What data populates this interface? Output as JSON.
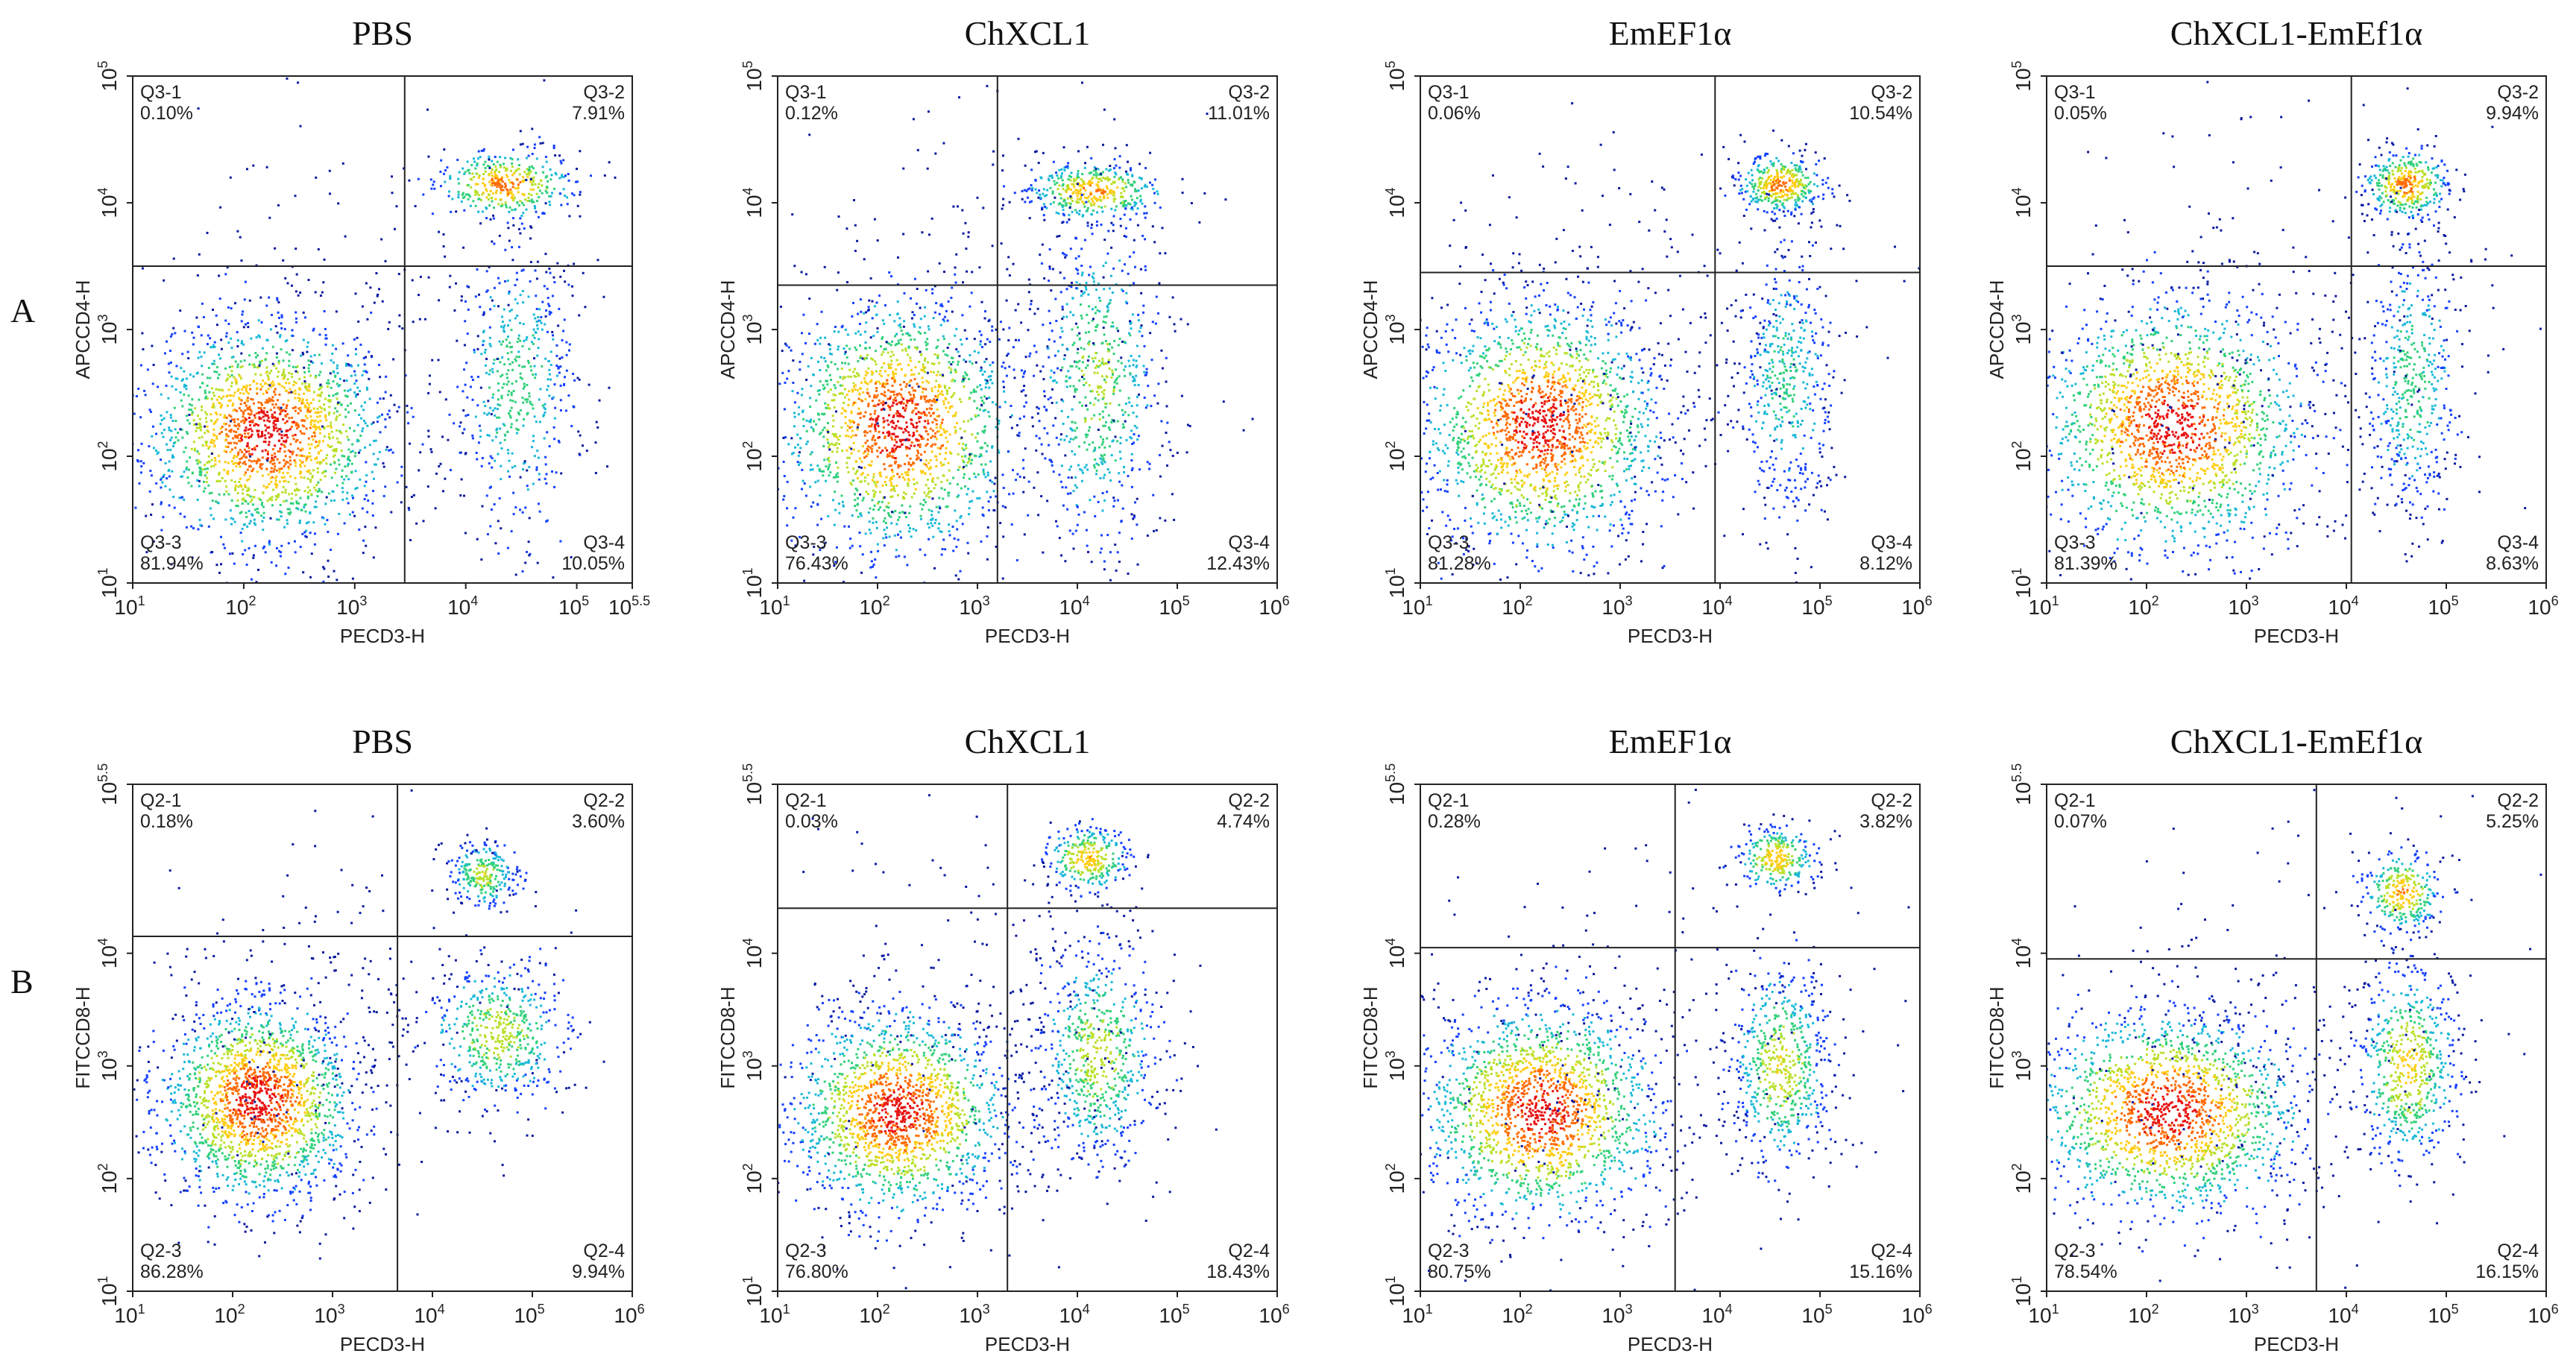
{
  "row_labels": [
    "A",
    "B"
  ],
  "heat_colors": [
    "#0a1aa0",
    "#1440ff",
    "#19b8d8",
    "#30d07a",
    "#b8e028",
    "#ffcc10",
    "#ff6a00",
    "#e81010"
  ],
  "chart_data": [
    {
      "type": "scatter",
      "title": "PBS",
      "row": "A",
      "xlabel": "PECD3-H",
      "ylabel": "APCCD4-H",
      "xlim": [
        1,
        5.5
      ],
      "ylim": [
        1,
        5
      ],
      "xticks": [
        1,
        2,
        3,
        4,
        5,
        5.5
      ],
      "yticks": [
        1,
        2,
        3,
        4,
        5
      ],
      "gate": {
        "x": 3.45,
        "y": 3.5
      },
      "quadrants": [
        {
          "name": "Q3-1",
          "value": "0.10%",
          "pos": "top-left"
        },
        {
          "name": "Q3-2",
          "value": "7.91%",
          "pos": "top-right"
        },
        {
          "name": "Q3-3",
          "value": "81.94%",
          "pos": "bottom-left"
        },
        {
          "name": "Q3-4",
          "value": "10.05%",
          "pos": "bottom-right"
        }
      ],
      "clusters": [
        {
          "cx": 2.2,
          "cy": 2.2,
          "sx": 0.55,
          "sy": 0.45,
          "n": 1800,
          "heat": 1.0
        },
        {
          "cx": 4.35,
          "cy": 4.15,
          "sx": 0.32,
          "sy": 0.14,
          "n": 400,
          "heat": 0.85
        },
        {
          "cx": 4.45,
          "cy": 2.55,
          "sx": 0.28,
          "sy": 0.6,
          "n": 520,
          "heat": 0.45
        },
        {
          "cx": 3.0,
          "cy": 3.0,
          "sx": 1.1,
          "sy": 0.9,
          "n": 200,
          "heat": 0.0
        }
      ]
    },
    {
      "type": "scatter",
      "title": "ChXCL1",
      "row": "A",
      "xlabel": "PECD3-H",
      "ylabel": "APCCD4-H",
      "xlim": [
        1,
        6
      ],
      "ylim": [
        1,
        5
      ],
      "xticks": [
        1,
        2,
        3,
        4,
        5,
        6
      ],
      "yticks": [
        1,
        2,
        3,
        4,
        5
      ],
      "gate": {
        "x": 3.2,
        "y": 3.35
      },
      "quadrants": [
        {
          "name": "Q3-1",
          "value": "0.12%",
          "pos": "top-left"
        },
        {
          "name": "Q3-2",
          "value": "11.01%",
          "pos": "top-right"
        },
        {
          "name": "Q3-3",
          "value": "76.43%",
          "pos": "bottom-left"
        },
        {
          "name": "Q3-4",
          "value": "12.43%",
          "pos": "bottom-right"
        }
      ],
      "clusters": [
        {
          "cx": 2.2,
          "cy": 2.25,
          "sx": 0.6,
          "sy": 0.5,
          "n": 1700,
          "heat": 1.0
        },
        {
          "cx": 4.15,
          "cy": 4.1,
          "sx": 0.35,
          "sy": 0.12,
          "n": 420,
          "heat": 0.8
        },
        {
          "cx": 4.2,
          "cy": 2.6,
          "sx": 0.32,
          "sy": 0.65,
          "n": 650,
          "heat": 0.55
        },
        {
          "cx": 3.2,
          "cy": 3.0,
          "sx": 1.2,
          "sy": 0.9,
          "n": 220,
          "heat": 0.0
        }
      ]
    },
    {
      "type": "scatter",
      "title": "EmEF1α",
      "row": "A",
      "xlabel": "PECD3-H",
      "ylabel": "APCCD4-H",
      "xlim": [
        1,
        6
      ],
      "ylim": [
        1,
        5
      ],
      "xticks": [
        1,
        2,
        3,
        4,
        5,
        6
      ],
      "yticks": [
        1,
        2,
        3,
        4,
        5
      ],
      "gate": {
        "x": 3.95,
        "y": 3.45
      },
      "quadrants": [
        {
          "name": "Q3-1",
          "value": "0.06%",
          "pos": "top-left"
        },
        {
          "name": "Q3-2",
          "value": "10.54%",
          "pos": "top-right"
        },
        {
          "name": "Q3-3",
          "value": "81.28%",
          "pos": "bottom-left"
        },
        {
          "name": "Q3-4",
          "value": "8.12%",
          "pos": "bottom-right"
        }
      ],
      "clusters": [
        {
          "cx": 2.2,
          "cy": 2.25,
          "sx": 0.62,
          "sy": 0.5,
          "n": 1800,
          "heat": 1.0
        },
        {
          "cx": 4.6,
          "cy": 4.15,
          "sx": 0.22,
          "sy": 0.12,
          "n": 380,
          "heat": 0.85
        },
        {
          "cx": 4.65,
          "cy": 2.6,
          "sx": 0.25,
          "sy": 0.55,
          "n": 480,
          "heat": 0.4
        },
        {
          "cx": 3.2,
          "cy": 3.0,
          "sx": 1.2,
          "sy": 0.9,
          "n": 220,
          "heat": 0.0
        }
      ]
    },
    {
      "type": "scatter",
      "title": "ChXCL1-EmEf1α",
      "row": "A",
      "xlabel": "PECD3-H",
      "ylabel": "APCCD4-H",
      "xlim": [
        1,
        6
      ],
      "ylim": [
        1,
        5
      ],
      "xticks": [
        1,
        2,
        3,
        4,
        5,
        6
      ],
      "yticks": [
        1,
        2,
        3,
        4,
        5
      ],
      "gate": {
        "x": 4.05,
        "y": 3.5
      },
      "quadrants": [
        {
          "name": "Q3-1",
          "value": "0.05%",
          "pos": "top-left"
        },
        {
          "name": "Q3-2",
          "value": "9.94%",
          "pos": "top-right"
        },
        {
          "name": "Q3-3",
          "value": "81.39%",
          "pos": "bottom-left"
        },
        {
          "name": "Q3-4",
          "value": "8.63%",
          "pos": "bottom-right"
        }
      ],
      "clusters": [
        {
          "cx": 2.25,
          "cy": 2.25,
          "sx": 0.68,
          "sy": 0.5,
          "n": 1800,
          "heat": 1.0
        },
        {
          "cx": 4.6,
          "cy": 4.15,
          "sx": 0.22,
          "sy": 0.14,
          "n": 380,
          "heat": 0.85
        },
        {
          "cx": 4.65,
          "cy": 2.6,
          "sx": 0.24,
          "sy": 0.55,
          "n": 480,
          "heat": 0.45
        },
        {
          "cx": 3.2,
          "cy": 3.0,
          "sx": 1.2,
          "sy": 0.9,
          "n": 220,
          "heat": 0.0
        }
      ]
    },
    {
      "type": "scatter",
      "title": "PBS",
      "row": "B",
      "xlabel": "PECD3-H",
      "ylabel": "FITCCD8-H",
      "xlim": [
        1,
        6
      ],
      "ylim": [
        1,
        5.5
      ],
      "xticks": [
        1,
        2,
        3,
        4,
        5,
        6
      ],
      "yticks": [
        1,
        2,
        3,
        4,
        5.5
      ],
      "gate": {
        "x": 3.65,
        "y": 4.15
      },
      "quadrants": [
        {
          "name": "Q2-1",
          "value": "0.18%",
          "pos": "top-left"
        },
        {
          "name": "Q2-2",
          "value": "3.60%",
          "pos": "top-right"
        },
        {
          "name": "Q2-3",
          "value": "86.28%",
          "pos": "bottom-left"
        },
        {
          "name": "Q2-4",
          "value": "9.94%",
          "pos": "bottom-right"
        }
      ],
      "clusters": [
        {
          "cx": 2.25,
          "cy": 2.7,
          "sx": 0.5,
          "sy": 0.45,
          "n": 1800,
          "heat": 1.0
        },
        {
          "cx": 4.5,
          "cy": 4.7,
          "sx": 0.18,
          "sy": 0.15,
          "n": 260,
          "heat": 0.6
        },
        {
          "cx": 4.65,
          "cy": 3.3,
          "sx": 0.35,
          "sy": 0.32,
          "n": 520,
          "heat": 0.6
        },
        {
          "cx": 3.0,
          "cy": 3.3,
          "sx": 0.9,
          "sy": 0.9,
          "n": 220,
          "heat": 0.0
        }
      ]
    },
    {
      "type": "scatter",
      "title": "ChXCL1",
      "row": "B",
      "xlabel": "PECD3-H",
      "ylabel": "FITCCD8-H",
      "xlim": [
        1,
        6
      ],
      "ylim": [
        1,
        5.5
      ],
      "xticks": [
        1,
        2,
        3,
        4,
        5,
        6
      ],
      "yticks": [
        1,
        2,
        3,
        4,
        5.5
      ],
      "gate": {
        "x": 3.3,
        "y": 4.4
      },
      "quadrants": [
        {
          "name": "Q2-1",
          "value": "0.03%",
          "pos": "top-left"
        },
        {
          "name": "Q2-2",
          "value": "4.74%",
          "pos": "top-right"
        },
        {
          "name": "Q2-3",
          "value": "76.80%",
          "pos": "bottom-left"
        },
        {
          "name": "Q2-4",
          "value": "18.43%",
          "pos": "bottom-right"
        }
      ],
      "clusters": [
        {
          "cx": 2.2,
          "cy": 2.6,
          "sx": 0.55,
          "sy": 0.45,
          "n": 1700,
          "heat": 1.0
        },
        {
          "cx": 4.1,
          "cy": 4.85,
          "sx": 0.22,
          "sy": 0.15,
          "n": 300,
          "heat": 0.75
        },
        {
          "cx": 4.2,
          "cy": 3.1,
          "sx": 0.3,
          "sy": 0.5,
          "n": 650,
          "heat": 0.6
        },
        {
          "cx": 3.2,
          "cy": 3.3,
          "sx": 1.1,
          "sy": 0.9,
          "n": 220,
          "heat": 0.0
        }
      ]
    },
    {
      "type": "scatter",
      "title": "EmEF1α",
      "row": "B",
      "xlabel": "PECD3-H",
      "ylabel": "FITCCD8-H",
      "xlim": [
        1,
        6
      ],
      "ylim": [
        1,
        5.5
      ],
      "xticks": [
        1,
        2,
        3,
        4,
        5,
        6
      ],
      "yticks": [
        1,
        2,
        3,
        4,
        5.5
      ],
      "gate": {
        "x": 3.55,
        "y": 4.05
      },
      "quadrants": [
        {
          "name": "Q2-1",
          "value": "0.28%",
          "pos": "top-left"
        },
        {
          "name": "Q2-2",
          "value": "3.82%",
          "pos": "top-right"
        },
        {
          "name": "Q2-3",
          "value": "80.75%",
          "pos": "bottom-left"
        },
        {
          "name": "Q2-4",
          "value": "15.16%",
          "pos": "bottom-right"
        }
      ],
      "clusters": [
        {
          "cx": 2.2,
          "cy": 2.6,
          "sx": 0.6,
          "sy": 0.48,
          "n": 1750,
          "heat": 1.0
        },
        {
          "cx": 4.55,
          "cy": 4.85,
          "sx": 0.2,
          "sy": 0.15,
          "n": 280,
          "heat": 0.75
        },
        {
          "cx": 4.6,
          "cy": 3.0,
          "sx": 0.25,
          "sy": 0.45,
          "n": 600,
          "heat": 0.65
        },
        {
          "cx": 3.2,
          "cy": 3.3,
          "sx": 1.1,
          "sy": 0.9,
          "n": 220,
          "heat": 0.0
        }
      ]
    },
    {
      "type": "scatter",
      "title": "ChXCL1-EmEf1α",
      "row": "B",
      "xlabel": "PECD3-H",
      "ylabel": "FITCCD8-H",
      "xlim": [
        1,
        6
      ],
      "ylim": [
        1,
        5.5
      ],
      "xticks": [
        1,
        2,
        3,
        4,
        5,
        6
      ],
      "yticks": [
        1,
        2,
        3,
        4,
        5.5
      ],
      "gate": {
        "x": 3.7,
        "y": 3.95
      },
      "quadrants": [
        {
          "name": "Q2-1",
          "value": "0.07%",
          "pos": "top-left"
        },
        {
          "name": "Q2-2",
          "value": "5.25%",
          "pos": "top-right"
        },
        {
          "name": "Q2-3",
          "value": "78.54%",
          "pos": "bottom-left"
        },
        {
          "name": "Q2-4",
          "value": "16.15%",
          "pos": "bottom-right"
        }
      ],
      "clusters": [
        {
          "cx": 2.2,
          "cy": 2.6,
          "sx": 0.68,
          "sy": 0.45,
          "n": 1750,
          "heat": 1.0
        },
        {
          "cx": 4.55,
          "cy": 4.55,
          "sx": 0.2,
          "sy": 0.18,
          "n": 300,
          "heat": 0.8
        },
        {
          "cx": 4.6,
          "cy": 3.0,
          "sx": 0.25,
          "sy": 0.45,
          "n": 600,
          "heat": 0.7
        },
        {
          "cx": 3.2,
          "cy": 3.3,
          "sx": 1.1,
          "sy": 0.9,
          "n": 220,
          "heat": 0.0
        }
      ]
    }
  ]
}
